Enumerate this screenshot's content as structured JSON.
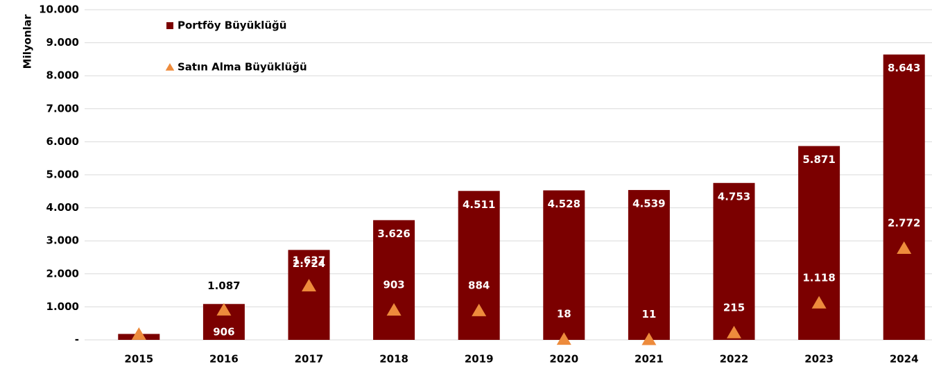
{
  "chart_data": {
    "type": "bar-marker",
    "y_label": "Milyonlar",
    "categories": [
      "2015",
      "2016",
      "2017",
      "2018",
      "2019",
      "2020",
      "2021",
      "2022",
      "2023",
      "2024"
    ],
    "series": [
      {
        "name": "Portföy Büyüklüğü",
        "color": "#7b0000",
        "marker": "bar",
        "values": [
          180,
          1087,
          2724,
          3626,
          4511,
          4528,
          4539,
          4753,
          5871,
          8643
        ],
        "value_labels": [
          null,
          "1.087",
          "2.724",
          "3.626",
          "4.511",
          "4.528",
          "4.539",
          "4.753",
          "5.871",
          "8.643"
        ]
      },
      {
        "name": "Satın Alma Büyüklüğü",
        "color": "#ed8b3c",
        "marker": "triangle",
        "values": [
          170,
          906,
          1637,
          903,
          884,
          18,
          11,
          215,
          1118,
          2772
        ],
        "value_labels": [
          null,
          "906",
          "1.637",
          "903",
          "884",
          "18",
          "11",
          "215",
          "1.118",
          "2.772"
        ]
      }
    ],
    "ylim": [
      0,
      10000
    ],
    "yticks": [
      {
        "value": 0,
        "label": "-"
      },
      {
        "value": 1000,
        "label": "1.000"
      },
      {
        "value": 2000,
        "label": "2.000"
      },
      {
        "value": 3000,
        "label": "3.000"
      },
      {
        "value": 4000,
        "label": "4.000"
      },
      {
        "value": 5000,
        "label": "5.000"
      },
      {
        "value": 6000,
        "label": "6.000"
      },
      {
        "value": 7000,
        "label": "7.000"
      },
      {
        "value": 8000,
        "label": "8.000"
      },
      {
        "value": 9000,
        "label": "9.000"
      },
      {
        "value": 10000,
        "label": "10.000"
      }
    ],
    "grid": true,
    "legend": "top-left"
  }
}
